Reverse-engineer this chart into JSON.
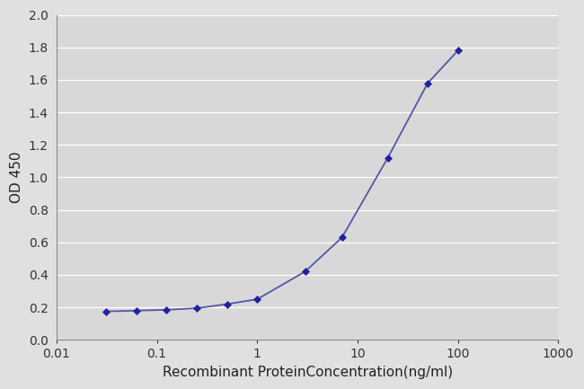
{
  "x_values": [
    0.031,
    0.063,
    0.125,
    0.25,
    0.5,
    1.0,
    3.0,
    7.0,
    20.0,
    50.0,
    100.0
  ],
  "y_values": [
    0.175,
    0.18,
    0.185,
    0.195,
    0.22,
    0.25,
    0.42,
    0.63,
    1.12,
    1.58,
    1.78
  ],
  "xlabel": "Recombinant ProteinConcentration(ng/ml)",
  "ylabel": "OD 450",
  "xlim": [
    0.01,
    1000
  ],
  "ylim": [
    0,
    2.0
  ],
  "yticks": [
    0,
    0.2,
    0.4,
    0.6,
    0.8,
    1.0,
    1.2,
    1.4,
    1.6,
    1.8,
    2.0
  ],
  "xticks": [
    0.01,
    0.1,
    1,
    10,
    100,
    1000
  ],
  "xtick_labels": [
    "0.01",
    "0.1",
    "1",
    "10",
    "100",
    "1000"
  ],
  "line_color": "#5555aa",
  "marker_color": "#2020a0",
  "plot_bg_color": "#d8d8d8",
  "fig_bg_color": "#e0e0e0",
  "grid_color": "#ffffff",
  "xlabel_fontsize": 11,
  "ylabel_fontsize": 11,
  "tick_fontsize": 10
}
